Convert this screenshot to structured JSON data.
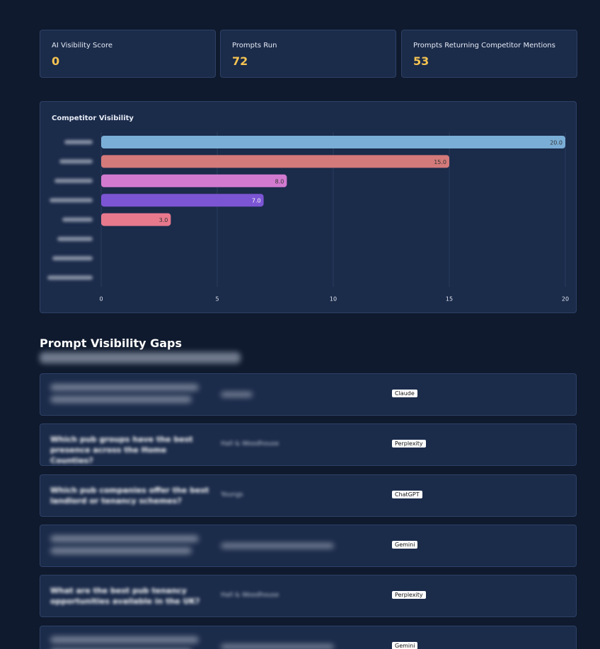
{
  "cards": [
    {
      "label": "AI Visibility Score",
      "value": 0
    },
    {
      "label": "Prompts Run",
      "value": 72
    },
    {
      "label": "Prompts Returning Competitor Mentions",
      "value": 53
    }
  ],
  "chart_data": {
    "type": "bar",
    "orientation": "horizontal",
    "title": "Competitor Visibility",
    "categories": [
      null,
      null,
      null,
      null,
      null,
      null,
      null,
      null
    ],
    "values": [
      20,
      15,
      8,
      7,
      3,
      0,
      0,
      0
    ],
    "value_labels": [
      "20.0",
      "15.0",
      "8.0",
      "7.0",
      "3.0",
      null,
      null,
      null
    ],
    "colors": [
      "#7aaed6",
      "#d47a7a",
      "#d27ad0",
      "#7c55d4",
      "#e8798d",
      "#7aaed6",
      "#7aaed6",
      "#7aaed6"
    ],
    "xlim": [
      0,
      20
    ],
    "xticks": [
      0,
      5,
      10,
      15,
      20
    ],
    "grid": true
  },
  "gaps": {
    "title": "Prompt Visibility Gaps",
    "rows": [
      {
        "prompt": null,
        "competitors": null,
        "model": "Claude"
      },
      {
        "prompt": "Which pub groups have the best presence across the Home Counties?",
        "competitors": "Hall & Woodhouse",
        "model": "Perplexity"
      },
      {
        "prompt": "Which pub companies offer the best landlord or tenancy schemes?",
        "competitors": "Youngs",
        "model": "ChatGPT"
      },
      {
        "prompt": null,
        "competitors": null,
        "model": "Gemini"
      },
      {
        "prompt": "What are the best pub tenancy opportunities available in the UK?",
        "competitors": "Hall & Woodhouse",
        "model": "Perplexity"
      },
      {
        "prompt": null,
        "competitors": null,
        "model": "Gemini"
      }
    ]
  }
}
